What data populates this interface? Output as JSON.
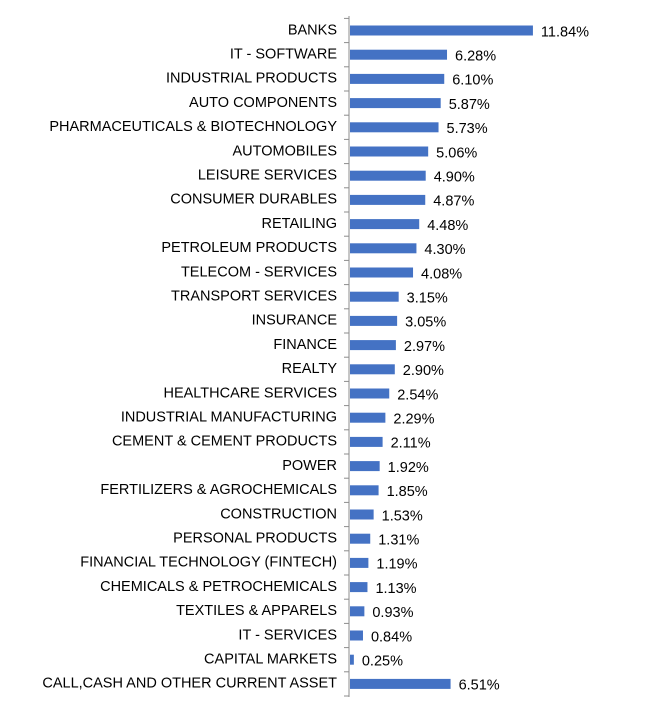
{
  "chart_data": {
    "type": "bar",
    "orientation": "horizontal",
    "bar_color": "#4472C4",
    "axis_color": "#8C8C8C",
    "text_color": "#000000",
    "categories": [
      "BANKS",
      "IT - SOFTWARE",
      "INDUSTRIAL PRODUCTS",
      "AUTO COMPONENTS",
      "PHARMACEUTICALS & BIOTECHNOLOGY",
      "AUTOMOBILES",
      "LEISURE SERVICES",
      "CONSUMER DURABLES",
      "RETAILING",
      "PETROLEUM PRODUCTS",
      "TELECOM - SERVICES",
      "TRANSPORT SERVICES",
      "INSURANCE",
      "FINANCE",
      "REALTY",
      "HEALTHCARE SERVICES",
      "INDUSTRIAL MANUFACTURING",
      "CEMENT & CEMENT PRODUCTS",
      "POWER",
      "FERTILIZERS & AGROCHEMICALS",
      "CONSTRUCTION",
      "PERSONAL PRODUCTS",
      "FINANCIAL TECHNOLOGY (FINTECH)",
      "CHEMICALS & PETROCHEMICALS",
      "TEXTILES & APPARELS",
      "IT - SERVICES",
      "CAPITAL MARKETS",
      "CALL,CASH AND OTHER CURRENT ASSET"
    ],
    "values": [
      11.84,
      6.28,
      6.1,
      5.87,
      5.73,
      5.06,
      4.9,
      4.87,
      4.48,
      4.3,
      4.08,
      3.15,
      3.05,
      2.97,
      2.9,
      2.54,
      2.29,
      2.11,
      1.92,
      1.85,
      1.53,
      1.31,
      1.19,
      1.13,
      0.93,
      0.84,
      0.25,
      6.51
    ],
    "data_labels": [
      "11.84%",
      "6.28%",
      "6.10%",
      "5.87%",
      "5.73%",
      "5.06%",
      "4.90%",
      "4.87%",
      "4.48%",
      "4.30%",
      "4.08%",
      "3.15%",
      "3.05%",
      "2.97%",
      "2.90%",
      "2.54%",
      "2.29%",
      "2.11%",
      "1.92%",
      "1.85%",
      "1.53%",
      "1.31%",
      "1.19%",
      "1.13%",
      "0.93%",
      "0.84%",
      "0.25%",
      "6.51%"
    ],
    "title": "",
    "xlabel": "",
    "ylabel": "",
    "grid": false,
    "legend": "none"
  }
}
